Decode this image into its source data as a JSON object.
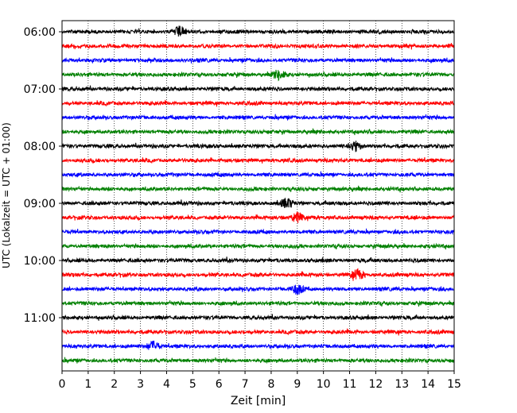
{
  "chart_data": {
    "type": "line",
    "title": "",
    "xlabel": "Zeit  [min]",
    "ylabel": "UTC (Lokalzeit = UTC + 01:00)",
    "xlim": [
      0,
      15
    ],
    "x_ticks": [
      "0",
      "1",
      "2",
      "3",
      "4",
      "5",
      "6",
      "7",
      "8",
      "9",
      "10",
      "11",
      "12",
      "13",
      "14",
      "15"
    ],
    "y_ticks": [
      "06:00",
      "07:00",
      "08:00",
      "09:00",
      "10:00",
      "11:00"
    ],
    "grid": "vertical dotted lines at each minute",
    "trace_interval_minutes": 15,
    "color_cycle": [
      "#000000",
      "#ff0000",
      "#0000ff",
      "#008000"
    ],
    "series": [
      {
        "start": "06:00",
        "color": "#000000"
      },
      {
        "start": "06:15",
        "color": "#ff0000"
      },
      {
        "start": "06:30",
        "color": "#0000ff"
      },
      {
        "start": "06:45",
        "color": "#008000"
      },
      {
        "start": "07:00",
        "color": "#000000"
      },
      {
        "start": "07:15",
        "color": "#ff0000"
      },
      {
        "start": "07:30",
        "color": "#0000ff"
      },
      {
        "start": "07:45",
        "color": "#008000"
      },
      {
        "start": "08:00",
        "color": "#000000"
      },
      {
        "start": "08:15",
        "color": "#ff0000"
      },
      {
        "start": "08:30",
        "color": "#0000ff"
      },
      {
        "start": "08:45",
        "color": "#008000"
      },
      {
        "start": "09:00",
        "color": "#000000"
      },
      {
        "start": "09:15",
        "color": "#ff0000"
      },
      {
        "start": "09:30",
        "color": "#0000ff"
      },
      {
        "start": "09:45",
        "color": "#008000"
      },
      {
        "start": "10:00",
        "color": "#000000"
      },
      {
        "start": "10:15",
        "color": "#ff0000"
      },
      {
        "start": "10:30",
        "color": "#0000ff"
      },
      {
        "start": "10:45",
        "color": "#008000"
      },
      {
        "start": "11:00",
        "color": "#000000"
      },
      {
        "start": "11:15",
        "color": "#ff0000"
      },
      {
        "start": "11:30",
        "color": "#0000ff"
      },
      {
        "start": "11:45",
        "color": "#008000"
      }
    ],
    "events": [
      {
        "trace": "06:00",
        "minute": 4.5
      },
      {
        "trace": "06:45",
        "minute": 8.3
      },
      {
        "trace": "08:00",
        "minute": 11.2
      },
      {
        "trace": "09:00",
        "minute": 8.6
      },
      {
        "trace": "09:15",
        "minute": 9.0
      },
      {
        "trace": "10:15",
        "minute": 11.3
      },
      {
        "trace": "10:30",
        "minute": 9.0
      },
      {
        "trace": "11:30",
        "minute": 3.5
      }
    ]
  }
}
